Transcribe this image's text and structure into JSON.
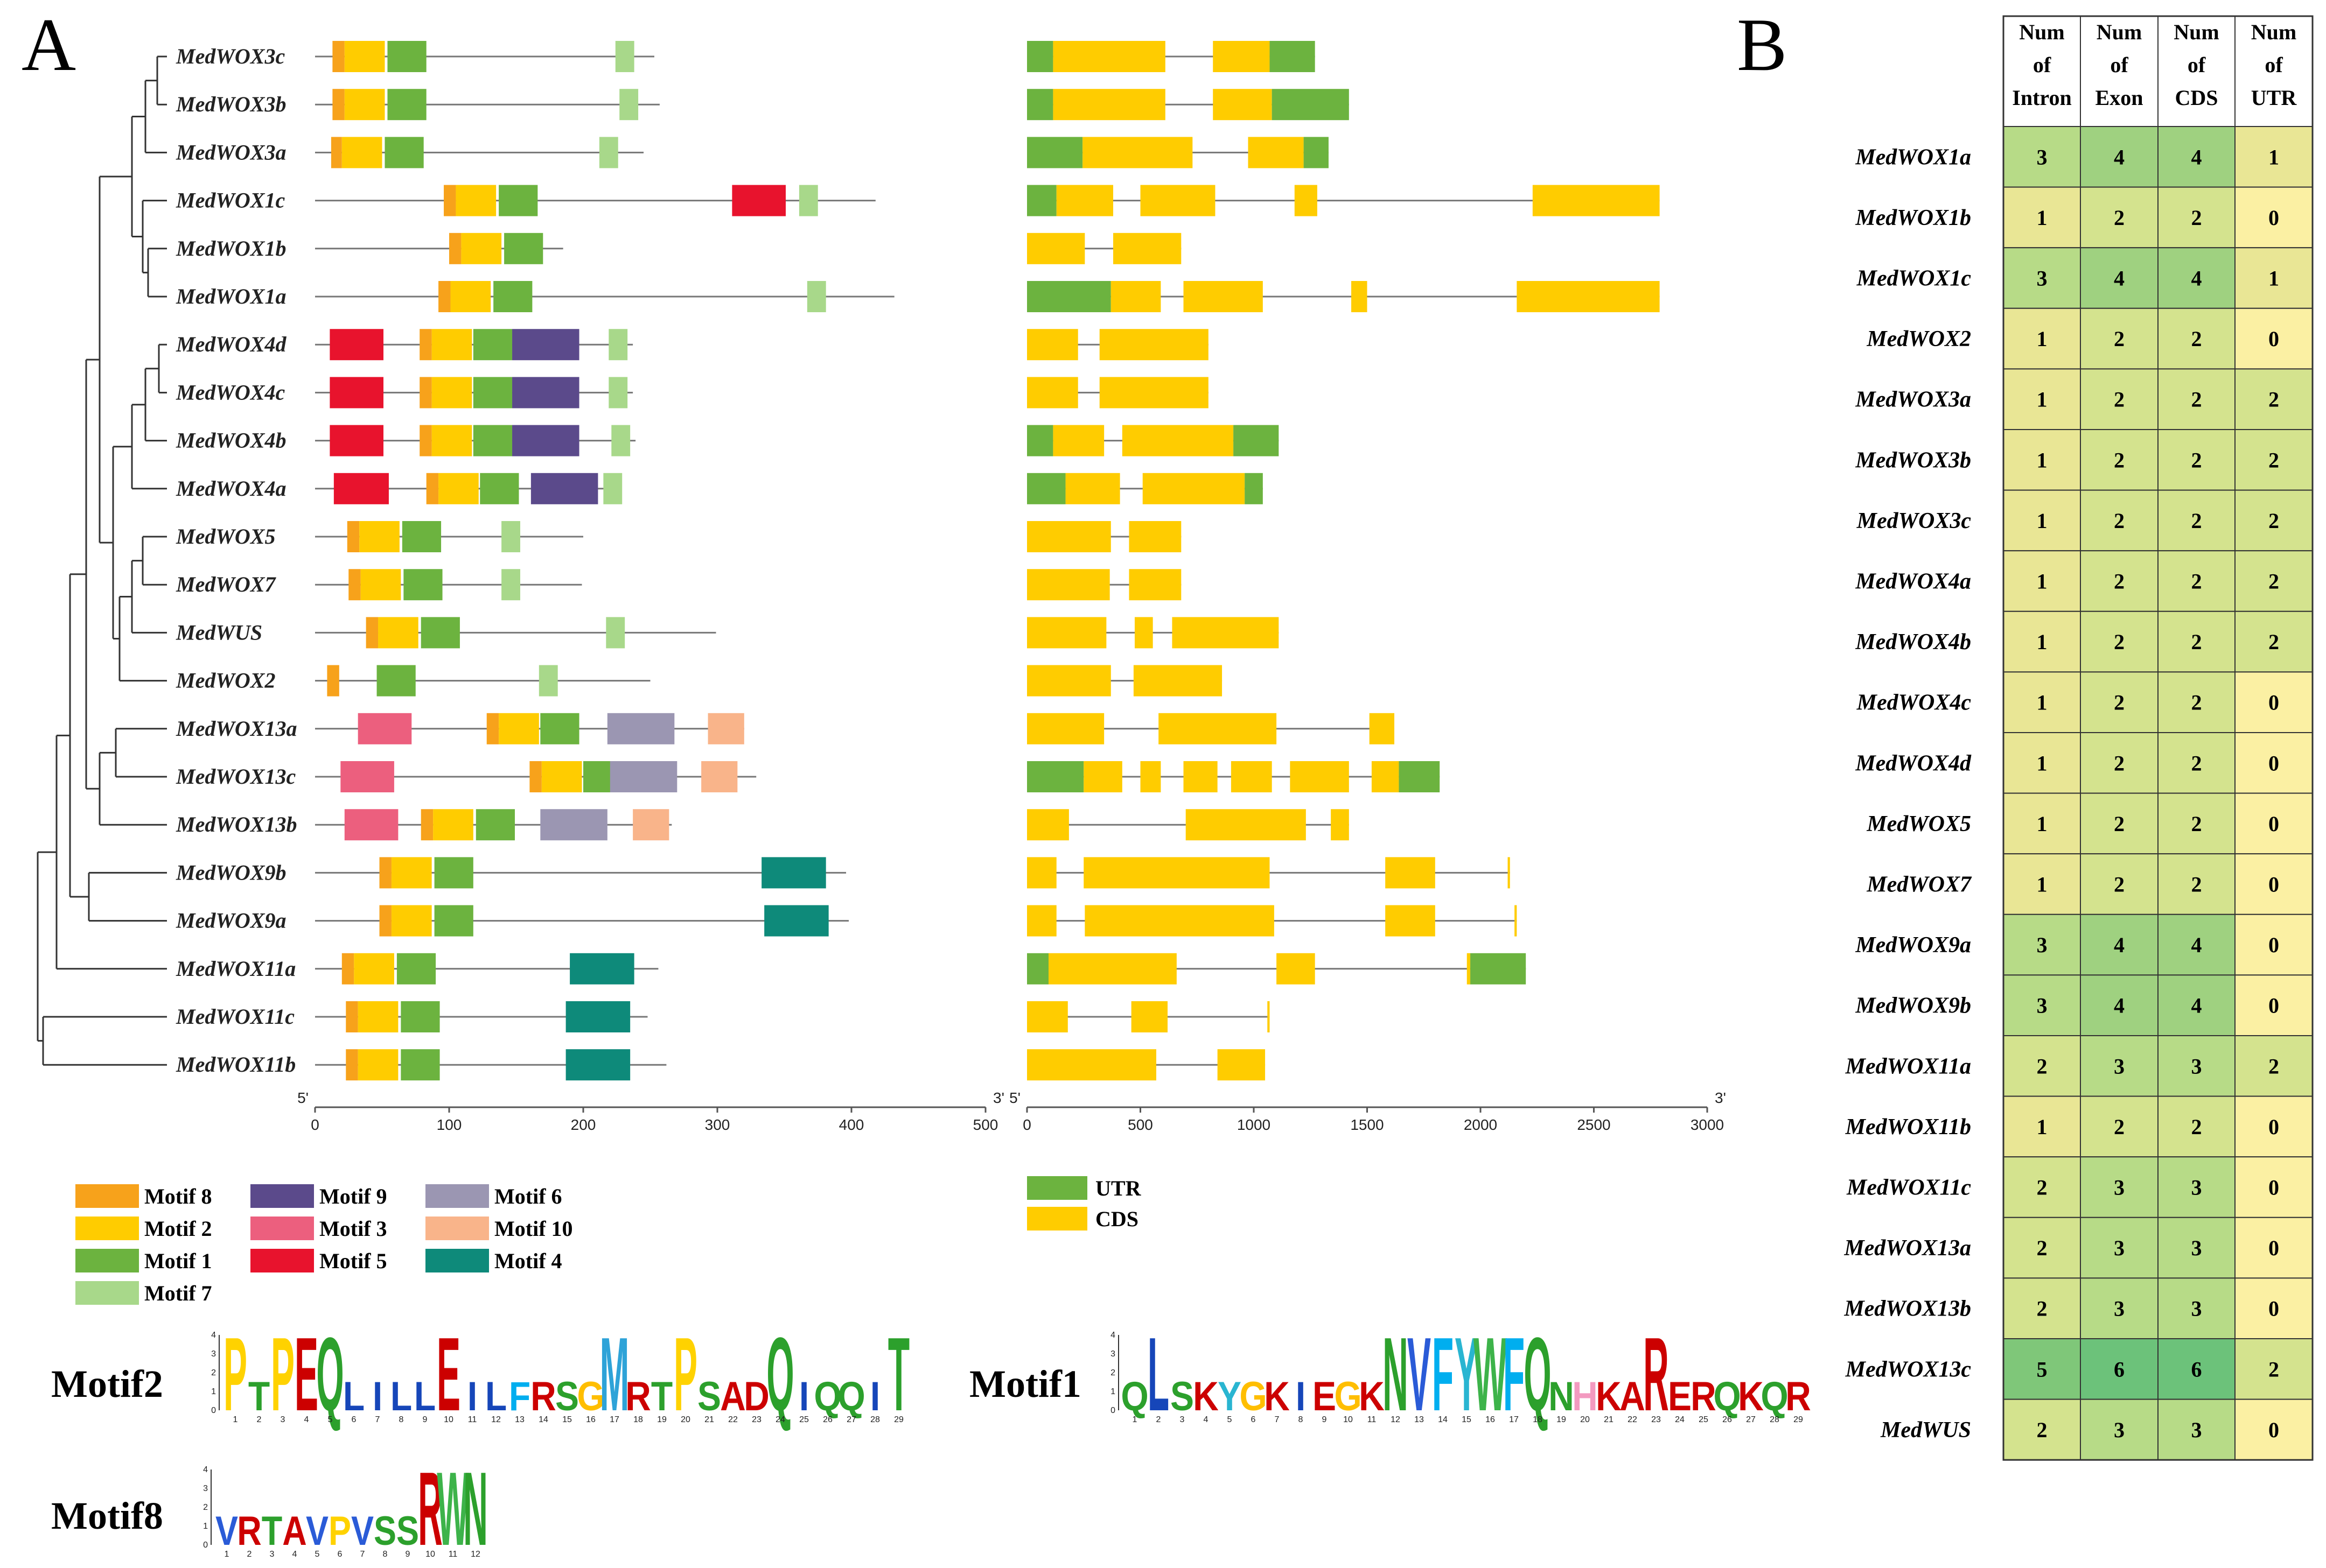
{
  "panel_a_letter": "A",
  "panel_b_letter": "B",
  "genes": [
    "MedWOX3c",
    "MedWOX3b",
    "MedWOX3a",
    "MedWOX1c",
    "MedWOX1b",
    "MedWOX1a",
    "MedWOX4d",
    "MedWOX4c",
    "MedWOX4b",
    "MedWOX4a",
    "MedWOX5",
    "MedWOX7",
    "MedWUS",
    "MedWOX2",
    "MedWOX13a",
    "MedWOX13c",
    "MedWOX13b",
    "MedWOX9b",
    "MedWOX9a",
    "MedWOX11a",
    "MedWOX11c",
    "MedWOX11b"
  ],
  "motif_colors": {
    "m8": "#f7a21b",
    "m2": "#ffcc00",
    "m1": "#6cb33f",
    "m7": "#a8d88a",
    "m9": "#5b4a8b",
    "m3": "#ec5f7e",
    "m5": "#e8132d",
    "m6": "#9b96b2",
    "m10": "#f9b48a",
    "m4": "#0e8a7a"
  },
  "utr_color": "#6cb33f",
  "cds_color": "#ffcc00",
  "motif_protein_lengths": [
    253,
    257,
    245,
    418,
    185,
    432,
    237,
    237,
    239,
    228,
    200,
    199,
    299,
    250,
    320,
    329,
    266,
    396,
    398,
    256,
    248,
    262
  ],
  "motifs_by_gene": [
    [
      [
        "m8",
        13,
        22
      ],
      [
        "m2",
        22,
        52
      ],
      [
        "m1",
        54,
        83
      ],
      [
        "m7",
        224,
        238
      ]
    ],
    [
      [
        "m8",
        13,
        22
      ],
      [
        "m2",
        22,
        52
      ],
      [
        "m1",
        54,
        83
      ],
      [
        "m7",
        227,
        241
      ]
    ],
    [
      [
        "m8",
        12,
        20
      ],
      [
        "m2",
        20,
        50
      ],
      [
        "m1",
        52,
        81
      ],
      [
        "m7",
        212,
        226
      ]
    ],
    [
      [
        "m8",
        96,
        105
      ],
      [
        "m2",
        105,
        135
      ],
      [
        "m1",
        137,
        166
      ],
      [
        "m5",
        311,
        351
      ],
      [
        "m7",
        361,
        375
      ]
    ],
    [
      [
        "m8",
        100,
        109
      ],
      [
        "m2",
        109,
        139
      ],
      [
        "m1",
        141,
        170
      ]
    ],
    [
      [
        "m8",
        92,
        101
      ],
      [
        "m2",
        101,
        131
      ],
      [
        "m1",
        133,
        162
      ],
      [
        "m7",
        367,
        381
      ]
    ],
    [
      [
        "m5",
        11,
        51
      ],
      [
        "m8",
        78,
        87
      ],
      [
        "m2",
        87,
        117
      ],
      [
        "m1",
        118,
        147
      ],
      [
        "m9",
        147,
        197
      ],
      [
        "m7",
        219,
        233
      ]
    ],
    [
      [
        "m5",
        11,
        51
      ],
      [
        "m8",
        78,
        87
      ],
      [
        "m2",
        87,
        117
      ],
      [
        "m1",
        118,
        147
      ],
      [
        "m9",
        147,
        197
      ],
      [
        "m7",
        219,
        233
      ]
    ],
    [
      [
        "m5",
        11,
        51
      ],
      [
        "m8",
        78,
        87
      ],
      [
        "m2",
        87,
        117
      ],
      [
        "m1",
        118,
        147
      ],
      [
        "m9",
        147,
        197
      ],
      [
        "m7",
        221,
        235
      ]
    ],
    [
      [
        "m5",
        14,
        55
      ],
      [
        "m8",
        83,
        92
      ],
      [
        "m2",
        92,
        122
      ],
      [
        "m1",
        123,
        152
      ],
      [
        "m9",
        161,
        211
      ],
      [
        "m7",
        215,
        229
      ]
    ],
    [
      [
        "m8",
        24,
        33
      ],
      [
        "m2",
        33,
        63
      ],
      [
        "m1",
        65,
        94
      ],
      [
        "m7",
        139,
        153
      ]
    ],
    [
      [
        "m8",
        25,
        34
      ],
      [
        "m2",
        34,
        64
      ],
      [
        "m1",
        66,
        95
      ],
      [
        "m7",
        139,
        153
      ]
    ],
    [
      [
        "m8",
        38,
        47
      ],
      [
        "m2",
        47,
        77
      ],
      [
        "m1",
        79,
        108
      ],
      [
        "m7",
        217,
        231
      ]
    ],
    [
      [
        "m8",
        9,
        18
      ],
      [
        "m1",
        46,
        75
      ],
      [
        "m7",
        167,
        181
      ]
    ],
    [
      [
        "m3",
        32,
        72
      ],
      [
        "m8",
        128,
        137
      ],
      [
        "m2",
        137,
        167
      ],
      [
        "m1",
        168,
        197
      ],
      [
        "m6",
        218,
        268
      ],
      [
        "m10",
        293,
        320
      ]
    ],
    [
      [
        "m3",
        19,
        59
      ],
      [
        "m8",
        160,
        169
      ],
      [
        "m2",
        169,
        199
      ],
      [
        "m1",
        200,
        229
      ],
      [
        "m6",
        220,
        270
      ],
      [
        "m10",
        288,
        315
      ]
    ],
    [
      [
        "m3",
        22,
        62
      ],
      [
        "m8",
        79,
        88
      ],
      [
        "m2",
        88,
        118
      ],
      [
        "m1",
        120,
        149
      ],
      [
        "m6",
        168,
        218
      ],
      [
        "m10",
        237,
        264
      ]
    ],
    [
      [
        "m8",
        48,
        57
      ],
      [
        "m2",
        57,
        87
      ],
      [
        "m1",
        89,
        118
      ],
      [
        "m4",
        333,
        381
      ]
    ],
    [
      [
        "m8",
        48,
        57
      ],
      [
        "m2",
        57,
        87
      ],
      [
        "m1",
        89,
        118
      ],
      [
        "m4",
        335,
        383
      ]
    ],
    [
      [
        "m8",
        20,
        29
      ],
      [
        "m2",
        29,
        59
      ],
      [
        "m1",
        61,
        90
      ],
      [
        "m4",
        190,
        238
      ]
    ],
    [
      [
        "m8",
        23,
        32
      ],
      [
        "m2",
        32,
        62
      ],
      [
        "m1",
        64,
        93
      ],
      [
        "m4",
        187,
        235
      ]
    ],
    [
      [
        "m8",
        23,
        32
      ],
      [
        "m2",
        32,
        62
      ],
      [
        "m1",
        64,
        93
      ],
      [
        "m4",
        187,
        235
      ]
    ]
  ],
  "gene_structure_lengths": [
    1270,
    1420,
    1330,
    2790,
    680,
    2790,
    800,
    800,
    1110,
    1040,
    680,
    680,
    1110,
    860,
    1620,
    1820,
    1420,
    2130,
    2160,
    2200,
    1070,
    1050
  ],
  "exons_by_gene": [
    [
      [
        "utr",
        0,
        115
      ],
      [
        "cds",
        115,
        610
      ],
      [
        "cds",
        820,
        1070
      ],
      [
        "utr",
        1070,
        1270
      ]
    ],
    [
      [
        "utr",
        0,
        115
      ],
      [
        "cds",
        115,
        610
      ],
      [
        "cds",
        820,
        1080
      ],
      [
        "utr",
        1080,
        1420
      ]
    ],
    [
      [
        "utr",
        0,
        245
      ],
      [
        "cds",
        245,
        730
      ],
      [
        "cds",
        975,
        1220
      ],
      [
        "utr",
        1220,
        1330
      ]
    ],
    [
      [
        "utr",
        0,
        130
      ],
      [
        "cds",
        130,
        380
      ],
      [
        "cds",
        500,
        830
      ],
      [
        "cds",
        1180,
        1280
      ],
      [
        "cds",
        2230,
        2790
      ]
    ],
    [
      [
        "cds",
        0,
        255
      ],
      [
        "cds",
        380,
        680
      ]
    ],
    [
      [
        "utr",
        0,
        370
      ],
      [
        "cds",
        370,
        590
      ],
      [
        "cds",
        690,
        1040
      ],
      [
        "cds",
        1430,
        1500
      ],
      [
        "cds",
        2160,
        2790
      ]
    ],
    [
      [
        "cds",
        0,
        225
      ],
      [
        "cds",
        320,
        800
      ]
    ],
    [
      [
        "cds",
        0,
        225
      ],
      [
        "cds",
        320,
        800
      ]
    ],
    [
      [
        "utr",
        0,
        115
      ],
      [
        "cds",
        115,
        340
      ],
      [
        "cds",
        420,
        910
      ],
      [
        "utr",
        910,
        1110
      ]
    ],
    [
      [
        "utr",
        0,
        170
      ],
      [
        "cds",
        170,
        410
      ],
      [
        "cds",
        510,
        960
      ],
      [
        "utr",
        960,
        1040
      ]
    ],
    [
      [
        "cds",
        0,
        370
      ],
      [
        "cds",
        450,
        680
      ]
    ],
    [
      [
        "cds",
        0,
        365
      ],
      [
        "cds",
        450,
        680
      ]
    ],
    [
      [
        "cds",
        0,
        350
      ],
      [
        "cds",
        475,
        555
      ],
      [
        "cds",
        640,
        1110
      ]
    ],
    [
      [
        "cds",
        0,
        370
      ],
      [
        "cds",
        470,
        860
      ]
    ],
    [
      [
        "cds",
        0,
        340
      ],
      [
        "cds",
        580,
        1100
      ],
      [
        "cds",
        1510,
        1620
      ]
    ],
    [
      [
        "utr",
        0,
        250
      ],
      [
        "cds",
        250,
        420
      ],
      [
        "cds",
        500,
        590
      ],
      [
        "cds",
        690,
        840
      ],
      [
        "cds",
        900,
        1080
      ],
      [
        "cds",
        1160,
        1420
      ],
      [
        "cds",
        1520,
        1640
      ],
      [
        "utr",
        1640,
        1820
      ]
    ],
    [
      [
        "cds",
        0,
        185
      ],
      [
        "cds",
        700,
        1230
      ],
      [
        "cds",
        1340,
        1420
      ]
    ],
    [
      [
        "cds",
        0,
        130
      ],
      [
        "cds",
        250,
        1070
      ],
      [
        "cds",
        1580,
        1800
      ],
      [
        "cds",
        2120,
        2130
      ]
    ],
    [
      [
        "cds",
        0,
        130
      ],
      [
        "cds",
        255,
        1090
      ],
      [
        "cds",
        1580,
        1800
      ],
      [
        "cds",
        2150,
        2160
      ]
    ],
    [
      [
        "utr",
        0,
        95
      ],
      [
        "cds",
        95,
        660
      ],
      [
        "cds",
        1100,
        1270
      ],
      [
        "cds",
        1940,
        1955
      ],
      [
        "utr",
        1955,
        2200
      ]
    ],
    [
      [
        "cds",
        0,
        180
      ],
      [
        "cds",
        460,
        620
      ],
      [
        "cds",
        1060,
        1070
      ]
    ],
    [
      [
        "cds",
        0,
        570
      ],
      [
        "cds",
        840,
        1050
      ]
    ]
  ],
  "axis_motif": {
    "ticks": [
      "0",
      "100",
      "200",
      "300",
      "400",
      "500"
    ],
    "start": "5'",
    "end": "3'"
  },
  "axis_gene": {
    "ticks": [
      "0",
      "500",
      "1000",
      "1500",
      "2000",
      "2500",
      "3000"
    ],
    "start": "5'",
    "end": "3'"
  },
  "motif_legend": [
    {
      "key": "m8",
      "label": "Motif 8"
    },
    {
      "key": "m2",
      "label": "Motif 2"
    },
    {
      "key": "m1",
      "label": "Motif 1"
    },
    {
      "key": "m7",
      "label": "Motif 7"
    },
    {
      "key": "m9",
      "label": "Motif 9"
    },
    {
      "key": "m3",
      "label": "Motif 3"
    },
    {
      "key": "m5",
      "label": "Motif 5"
    },
    {
      "key": "m6",
      "label": "Motif 6"
    },
    {
      "key": "m10",
      "label": "Motif 10"
    },
    {
      "key": "m4",
      "label": "Motif 4"
    }
  ],
  "structure_legend": [
    {
      "key": "utr",
      "label": "UTR"
    },
    {
      "key": "cds",
      "label": "CDS"
    }
  ],
  "logos": {
    "motif2": {
      "title": "Motif2",
      "letters": [
        "P",
        "T",
        "P",
        "E",
        "Q",
        "L",
        "I",
        "L",
        "L",
        "E",
        "I",
        "L",
        "F",
        "R",
        "S",
        "G",
        "M",
        "R",
        "T",
        "P",
        "S",
        "A",
        "D",
        "Q",
        "I",
        "Q",
        "Q",
        "I",
        "T"
      ]
    },
    "motif1": {
      "title": "Motif1",
      "letters": [
        "Q",
        "L",
        "S",
        "K",
        "Y",
        "G",
        "K",
        "I",
        "E",
        "G",
        "K",
        "N",
        "V",
        "F",
        "Y",
        "W",
        "F",
        "Q",
        "N",
        "H",
        "K",
        "A",
        "R",
        "E",
        "R",
        "Q",
        "K",
        "Q",
        "R"
      ]
    },
    "motif8": {
      "title": "Motif8",
      "letters": [
        "V",
        "R",
        "T",
        "A",
        "V",
        "P",
        "V",
        "S",
        "S",
        "R",
        "W",
        "N"
      ]
    }
  },
  "table": {
    "headers": [
      [
        "Num",
        "of",
        "Intron"
      ],
      [
        "Num",
        "of",
        "Exon"
      ],
      [
        "Num",
        "of",
        "CDS"
      ],
      [
        "Num",
        "of",
        "UTR"
      ]
    ],
    "rows": [
      {
        "gene": "MedWOX1a",
        "vals": [
          3,
          4,
          4,
          1
        ]
      },
      {
        "gene": "MedWOX1b",
        "vals": [
          1,
          2,
          2,
          0
        ]
      },
      {
        "gene": "MedWOX1c",
        "vals": [
          3,
          4,
          4,
          1
        ]
      },
      {
        "gene": "MedWOX2",
        "vals": [
          1,
          2,
          2,
          0
        ]
      },
      {
        "gene": "MedWOX3a",
        "vals": [
          1,
          2,
          2,
          2
        ]
      },
      {
        "gene": "MedWOX3b",
        "vals": [
          1,
          2,
          2,
          2
        ]
      },
      {
        "gene": "MedWOX3c",
        "vals": [
          1,
          2,
          2,
          2
        ]
      },
      {
        "gene": "MedWOX4a",
        "vals": [
          1,
          2,
          2,
          2
        ]
      },
      {
        "gene": "MedWOX4b",
        "vals": [
          1,
          2,
          2,
          2
        ]
      },
      {
        "gene": "MedWOX4c",
        "vals": [
          1,
          2,
          2,
          0
        ]
      },
      {
        "gene": "MedWOX4d",
        "vals": [
          1,
          2,
          2,
          0
        ]
      },
      {
        "gene": "MedWOX5",
        "vals": [
          1,
          2,
          2,
          0
        ]
      },
      {
        "gene": "MedWOX7",
        "vals": [
          1,
          2,
          2,
          0
        ]
      },
      {
        "gene": "MedWOX9a",
        "vals": [
          3,
          4,
          4,
          0
        ]
      },
      {
        "gene": "MedWOX9b",
        "vals": [
          3,
          4,
          4,
          0
        ]
      },
      {
        "gene": "MedWOX11a",
        "vals": [
          2,
          3,
          3,
          2
        ]
      },
      {
        "gene": "MedWOX11b",
        "vals": [
          1,
          2,
          2,
          0
        ]
      },
      {
        "gene": "MedWOX11c",
        "vals": [
          2,
          3,
          3,
          0
        ]
      },
      {
        "gene": "MedWOX13a",
        "vals": [
          2,
          3,
          3,
          0
        ]
      },
      {
        "gene": "MedWOX13b",
        "vals": [
          2,
          3,
          3,
          0
        ]
      },
      {
        "gene": "MedWOX13c",
        "vals": [
          5,
          6,
          6,
          2
        ]
      },
      {
        "gene": "MedWUS",
        "vals": [
          2,
          3,
          3,
          0
        ]
      }
    ]
  }
}
